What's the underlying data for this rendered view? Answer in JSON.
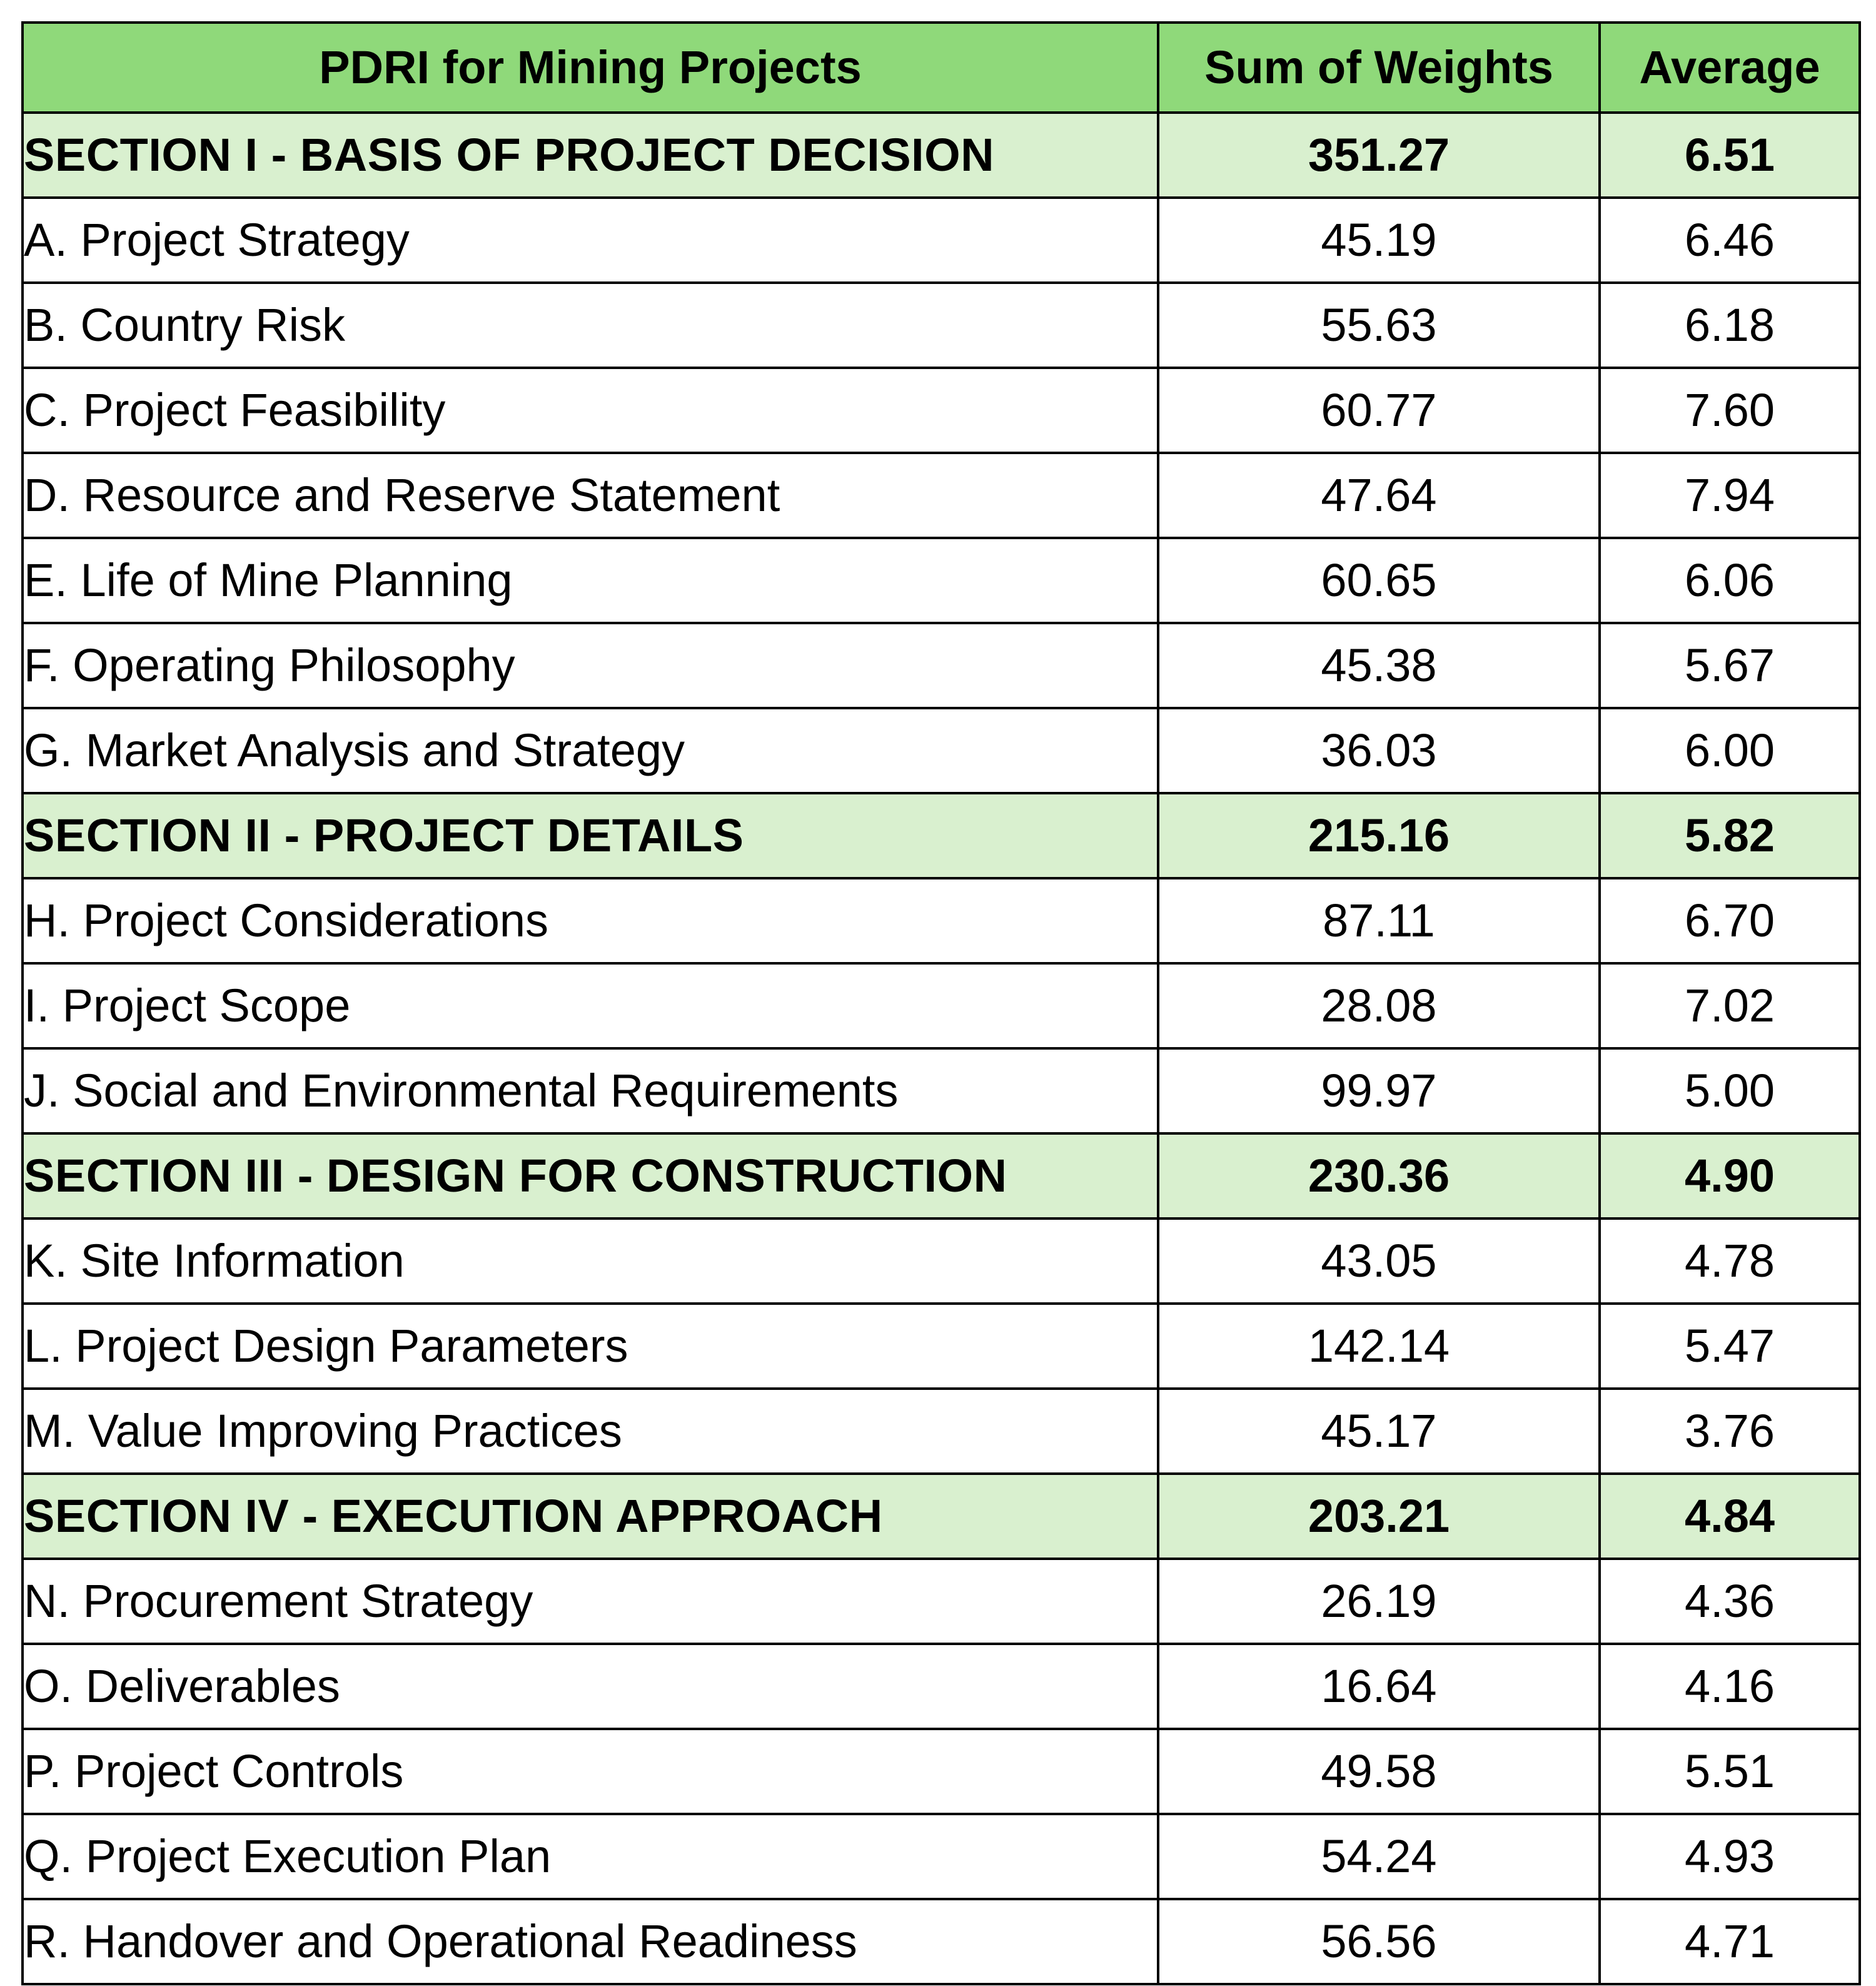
{
  "table": {
    "headers": {
      "name": "PDRI for Mining Projects",
      "sum": "Sum of Weights",
      "avg": "Average"
    },
    "sections": [
      {
        "label": "SECTION I - BASIS OF PROJECT DECISION",
        "sum": "351.27",
        "avg": "6.51",
        "items": [
          {
            "label": "A. Project Strategy",
            "sum": "45.19",
            "avg": "6.46"
          },
          {
            "label": "B. Country Risk",
            "sum": "55.63",
            "avg": "6.18"
          },
          {
            "label": "C. Project Feasibility",
            "sum": "60.77",
            "avg": "7.60"
          },
          {
            "label": "D. Resource and Reserve Statement",
            "sum": "47.64",
            "avg": "7.94"
          },
          {
            "label": "E. Life of Mine Planning",
            "sum": "60.65",
            "avg": "6.06"
          },
          {
            "label": "F. Operating Philosophy",
            "sum": "45.38",
            "avg": "5.67"
          },
          {
            "label": "G. Market Analysis and Strategy",
            "sum": "36.03",
            "avg": "6.00"
          }
        ]
      },
      {
        "label": "SECTION II - PROJECT DETAILS",
        "sum": "215.16",
        "avg": "5.82",
        "items": [
          {
            "label": "H. Project Considerations",
            "sum": "87.11",
            "avg": "6.70"
          },
          {
            "label": "I. Project Scope",
            "sum": "28.08",
            "avg": "7.02"
          },
          {
            "label": "J. Social and Environmental Requirements",
            "sum": "99.97",
            "avg": "5.00"
          }
        ]
      },
      {
        "label": "SECTION III - DESIGN FOR CONSTRUCTION",
        "sum": "230.36",
        "avg": "4.90",
        "items": [
          {
            "label": "K. Site Information",
            "sum": "43.05",
            "avg": "4.78"
          },
          {
            "label": "L. Project Design Parameters",
            "sum": "142.14",
            "avg": "5.47"
          },
          {
            "label": "M. Value Improving Practices",
            "sum": "45.17",
            "avg": "3.76"
          }
        ]
      },
      {
        "label": "SECTION IV - EXECUTION APPROACH",
        "sum": "203.21",
        "avg": "4.84",
        "items": [
          {
            "label": "N. Procurement Strategy",
            "sum": "26.19",
            "avg": "4.36"
          },
          {
            "label": "O. Deliverables",
            "sum": "16.64",
            "avg": "4.16"
          },
          {
            "label": "P. Project Controls",
            "sum": "49.58",
            "avg": "5.51"
          },
          {
            "label": "Q. Project Execution Plan",
            "sum": "54.24",
            "avg": "4.93"
          },
          {
            "label": "R. Handover and Operational Readiness",
            "sum": "56.56",
            "avg": "4.71"
          }
        ]
      }
    ]
  }
}
